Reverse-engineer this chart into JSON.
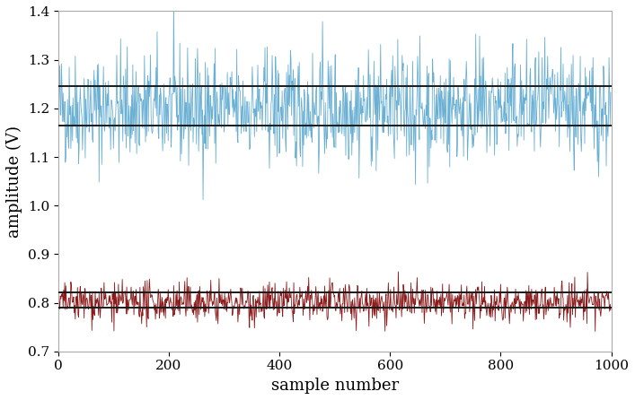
{
  "n_samples": 1000,
  "blue_mean": 1.2,
  "blue_std": 0.058,
  "blue_line1": 1.165,
  "blue_line2": 1.245,
  "blue_color": "#6ab0d4",
  "red_mean": 0.8,
  "red_std": 0.02,
  "red_line1": 0.79,
  "red_line2": 0.822,
  "red_color": "#8b1a1a",
  "hline_color": "#1a1a1a",
  "hline_lw": 1.4,
  "xlim": [
    0,
    1000
  ],
  "ylim": [
    0.7,
    1.4
  ],
  "yticks": [
    0.7,
    0.8,
    0.9,
    1.0,
    1.1,
    1.2,
    1.3,
    1.4
  ],
  "xticks": [
    0,
    200,
    400,
    600,
    800,
    1000
  ],
  "xlabel": "sample number",
  "ylabel": "amplitude (V)",
  "xlabel_fontsize": 13,
  "ylabel_fontsize": 13,
  "tick_fontsize": 11,
  "seed": 42,
  "background_color": "#ffffff",
  "line_width": 0.6,
  "spine_color": "#aaaaaa"
}
